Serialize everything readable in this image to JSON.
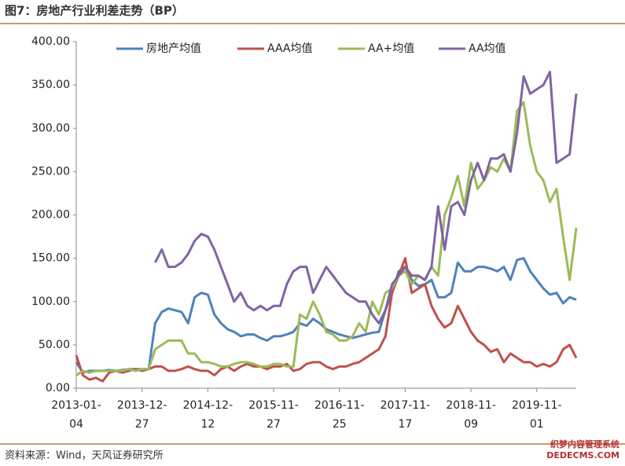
{
  "chart_data": {
    "type": "line",
    "title": "图7：房地产行业利差走势（BP）",
    "source": "资料来源：Wind，天风证券研究所",
    "watermark": [
      "织梦内容管理系统",
      "DEDECMS.COM"
    ],
    "categories": [
      "2013-01-04",
      null,
      null,
      null,
      null,
      null,
      null,
      null,
      null,
      null,
      "2013-12-27",
      null,
      null,
      null,
      null,
      null,
      null,
      null,
      null,
      null,
      "2014-12-12",
      null,
      null,
      null,
      null,
      null,
      null,
      null,
      null,
      null,
      "2015-11-27",
      null,
      null,
      null,
      null,
      null,
      null,
      null,
      null,
      null,
      "2016-11-25",
      null,
      null,
      null,
      null,
      null,
      null,
      null,
      null,
      null,
      "2017-11-17",
      null,
      null,
      null,
      null,
      null,
      null,
      null,
      null,
      null,
      "2018-11-09",
      null,
      null,
      null,
      null,
      null,
      null,
      null,
      null,
      null,
      "2019-11-01",
      null,
      null,
      null,
      null,
      null,
      null
    ],
    "ylim": [
      0,
      400
    ],
    "yticks": [
      {
        "value": 0,
        "label": "0.00"
      },
      {
        "value": 50,
        "label": "50.00"
      },
      {
        "value": 100,
        "label": "100.00"
      },
      {
        "value": 150,
        "label": "150.00"
      },
      {
        "value": 200,
        "label": "200.00"
      },
      {
        "value": 250,
        "label": "250.00"
      },
      {
        "value": 300,
        "label": "300.00"
      },
      {
        "value": 350,
        "label": "350.00"
      },
      {
        "value": 400,
        "label": "400.00"
      }
    ],
    "grid": false,
    "legend": "top",
    "series": [
      {
        "name": "房地产均值",
        "color": "#4f81bd",
        "values": [
          30,
          18,
          20,
          20,
          20,
          21,
          20,
          21,
          22,
          22,
          22,
          22,
          75,
          88,
          92,
          90,
          88,
          75,
          105,
          110,
          108,
          85,
          75,
          68,
          65,
          60,
          62,
          62,
          58,
          55,
          60,
          60,
          62,
          65,
          75,
          72,
          80,
          75,
          68,
          65,
          62,
          60,
          58,
          60,
          62,
          64,
          65,
          90,
          110,
          135,
          140,
          125,
          118,
          120,
          125,
          105,
          105,
          110,
          145,
          135,
          135,
          140,
          140,
          138,
          135,
          140,
          125,
          148,
          150,
          135,
          125,
          115,
          108,
          110,
          98,
          105,
          102
        ]
      },
      {
        "name": "AAA均值",
        "color": "#c0504d",
        "values": [
          38,
          15,
          10,
          12,
          8,
          18,
          20,
          18,
          20,
          22,
          20,
          22,
          25,
          25,
          20,
          20,
          22,
          25,
          22,
          20,
          20,
          15,
          22,
          25,
          20,
          25,
          28,
          25,
          25,
          22,
          25,
          25,
          28,
          20,
          22,
          28,
          30,
          30,
          25,
          22,
          25,
          25,
          28,
          30,
          35,
          40,
          45,
          60,
          110,
          130,
          150,
          110,
          115,
          120,
          95,
          80,
          70,
          75,
          95,
          80,
          65,
          55,
          50,
          42,
          45,
          30,
          40,
          35,
          30,
          30,
          25,
          28,
          25,
          30,
          45,
          50,
          35
        ]
      },
      {
        "name": "AA+均值",
        "color": "#9bbb59",
        "values": [
          15,
          20,
          18,
          20,
          20,
          20,
          20,
          20,
          22,
          20,
          22,
          22,
          45,
          50,
          55,
          55,
          55,
          40,
          40,
          30,
          30,
          28,
          25,
          25,
          28,
          30,
          30,
          28,
          25,
          25,
          28,
          28,
          25,
          25,
          85,
          80,
          100,
          85,
          65,
          62,
          55,
          55,
          60,
          75,
          65,
          100,
          85,
          110,
          115,
          130,
          135,
          120,
          130,
          125,
          140,
          130,
          200,
          220,
          245,
          210,
          260,
          230,
          240,
          255,
          250,
          265,
          250,
          320,
          330,
          280,
          250,
          240,
          215,
          230,
          175,
          125,
          185
        ]
      },
      {
        "name": "AA均值",
        "color": "#8064a2",
        "values": [
          null,
          null,
          null,
          null,
          null,
          null,
          null,
          null,
          null,
          null,
          null,
          null,
          145,
          160,
          140,
          140,
          145,
          155,
          170,
          178,
          175,
          160,
          140,
          120,
          100,
          110,
          95,
          90,
          95,
          90,
          95,
          95,
          120,
          135,
          140,
          140,
          110,
          125,
          140,
          130,
          120,
          110,
          105,
          100,
          100,
          85,
          75,
          90,
          120,
          130,
          140,
          130,
          130,
          125,
          140,
          210,
          160,
          210,
          215,
          200,
          240,
          260,
          240,
          265,
          265,
          270,
          250,
          295,
          360,
          340,
          345,
          350,
          365,
          260,
          265,
          270,
          340
        ]
      }
    ]
  }
}
